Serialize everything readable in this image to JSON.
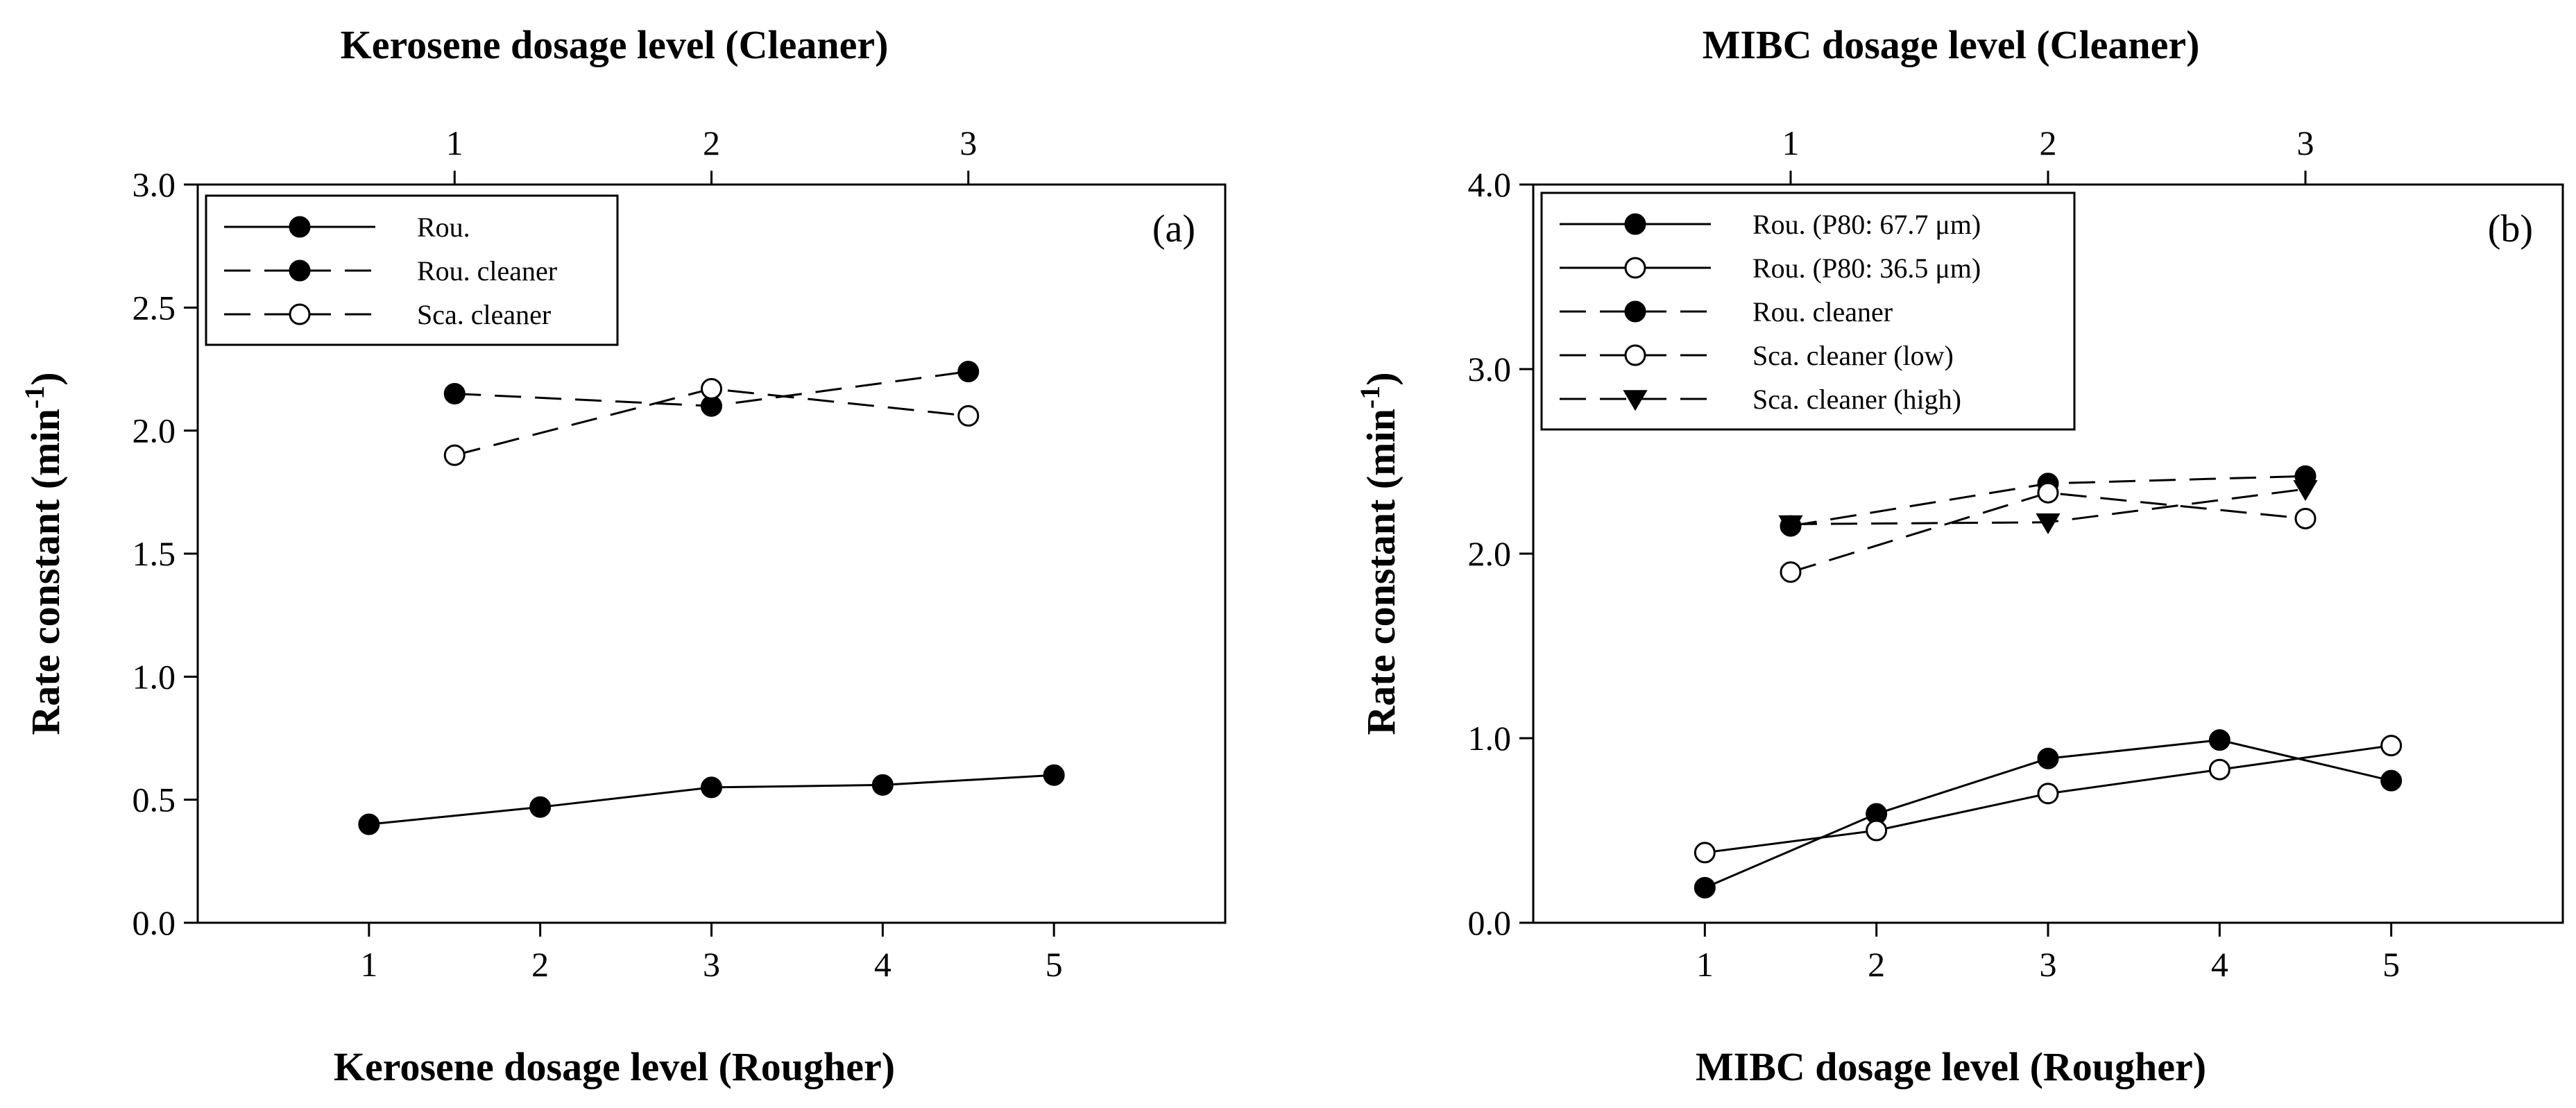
{
  "chart_data": [
    {
      "panel": "a",
      "type": "line",
      "panel_label": "(a)",
      "title_top": "Kerosene dosage level (Cleaner)",
      "xlabel": "Kerosene dosage level (Rougher)",
      "ylabel": "Rate constant (min",
      "ylabel_sup": "-1",
      "ylabel_close": ")",
      "xlim": [
        0,
        6
      ],
      "ylim": [
        0,
        3
      ],
      "xticks": [
        1,
        2,
        3,
        4,
        5
      ],
      "xtick_labels": [
        "1",
        "2",
        "3",
        "4",
        "5"
      ],
      "yticks": [
        0,
        0.5,
        1,
        1.5,
        2,
        2.5,
        3
      ],
      "ytick_labels": [
        "0.0",
        "0.5",
        "1.0",
        "1.5",
        "2.0",
        "2.5",
        "3.0"
      ],
      "top_ticks": [
        1.5,
        3,
        4.5
      ],
      "top_tick_labels": [
        "1",
        "2",
        "3"
      ],
      "legend_position": "top-left",
      "series": [
        {
          "name": "Rou.",
          "dash": "solid",
          "marker": "filled-circle",
          "x": [
            1,
            2,
            3,
            4,
            5
          ],
          "values": [
            0.4,
            0.47,
            0.55,
            0.56,
            0.6
          ]
        },
        {
          "name": "Rou. cleaner",
          "dash": "dashed",
          "marker": "filled-circle",
          "x": [
            1.5,
            3,
            4.5
          ],
          "values": [
            2.15,
            2.1,
            2.24
          ]
        },
        {
          "name": "Sca. cleaner",
          "dash": "dashed",
          "marker": "open-circle",
          "x": [
            1.5,
            3,
            4.5
          ],
          "values": [
            1.9,
            2.17,
            2.06
          ]
        }
      ]
    },
    {
      "panel": "b",
      "type": "line",
      "panel_label": "(b)",
      "title_top": "MIBC dosage level (Cleaner)",
      "xlabel": "MIBC dosage level (Rougher)",
      "ylabel": "Rate constant (min",
      "ylabel_sup": "-1",
      "ylabel_close": ")",
      "xlim": [
        0,
        6
      ],
      "ylim": [
        0,
        4
      ],
      "xticks": [
        1,
        2,
        3,
        4,
        5
      ],
      "xtick_labels": [
        "1",
        "2",
        "3",
        "4",
        "5"
      ],
      "yticks": [
        0,
        1,
        2,
        3,
        4
      ],
      "ytick_labels": [
        "0.0",
        "1.0",
        "2.0",
        "3.0",
        "4.0"
      ],
      "top_ticks": [
        1.5,
        3,
        4.5
      ],
      "top_tick_labels": [
        "1",
        "2",
        "3"
      ],
      "legend_position": "top-left",
      "series": [
        {
          "name": "Rou. (P80: 67.7 μm)",
          "dash": "solid",
          "marker": "filled-circle",
          "x": [
            1,
            2,
            3,
            4,
            5
          ],
          "values": [
            0.19,
            0.59,
            0.89,
            0.99,
            0.77
          ]
        },
        {
          "name": "Rou. (P80: 36.5 μm)",
          "dash": "solid",
          "marker": "open-circle",
          "x": [
            1,
            2,
            3,
            4,
            5
          ],
          "values": [
            0.38,
            0.5,
            0.7,
            0.83,
            0.96
          ]
        },
        {
          "name": "Rou. cleaner",
          "dash": "dashed",
          "marker": "filled-circle",
          "x": [
            1.5,
            3,
            4.5
          ],
          "values": [
            2.15,
            2.38,
            2.42
          ]
        },
        {
          "name": "Sca. cleaner (low)",
          "dash": "dashed",
          "marker": "open-circle",
          "x": [
            1.5,
            3,
            4.5
          ],
          "values": [
            1.9,
            2.33,
            2.19
          ]
        },
        {
          "name": "Sca. cleaner (high)",
          "dash": "dashed",
          "marker": "filled-triangle-down",
          "x": [
            1.5,
            3,
            4.5
          ],
          "values": [
            2.16,
            2.17,
            2.35
          ]
        }
      ]
    }
  ]
}
